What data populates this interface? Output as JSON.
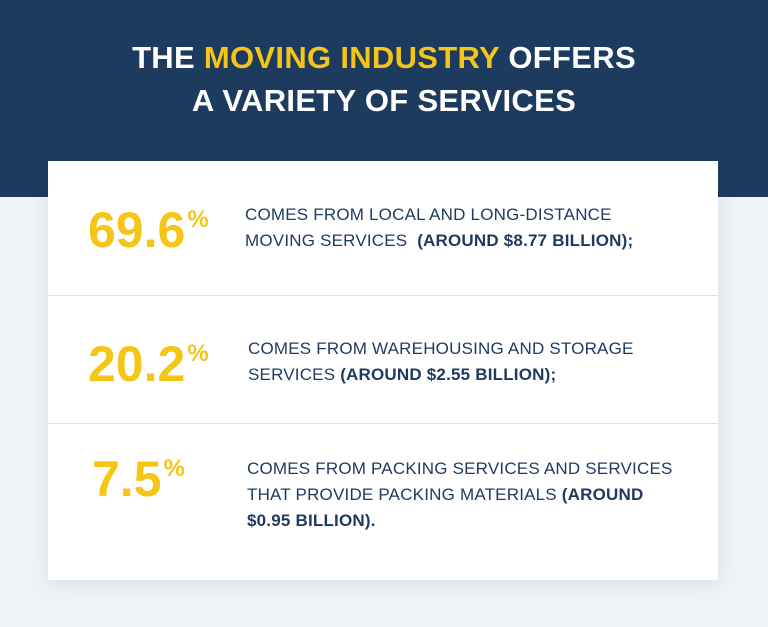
{
  "title": {
    "part1": "THE ",
    "highlight": "MOVING INDUSTRY",
    "part2": " OFFERS",
    "line2": "A VARIETY OF SERVICES"
  },
  "colors": {
    "navy": "#1d3a5f",
    "accent_yellow": "#f5c518",
    "background": "#eef3f6"
  },
  "chart_data": {
    "type": "table",
    "title": "THE MOVING INDUSTRY OFFERS A VARIETY OF SERVICES",
    "rows": [
      {
        "value": "69.6",
        "unit": "%",
        "text": "COMES FROM LOCAL AND LONG-DISTANCE MOVING SERVICES",
        "bold": "(AROUND $8.77 BILLION);"
      },
      {
        "value": "20.2",
        "unit": "%",
        "text": "COMES FROM WAREHOUSING AND STORAGE SERVICES",
        "bold": "(AROUND $2.55 BILLION);"
      },
      {
        "value": "7.5",
        "unit": "%",
        "text": "COMES FROM PACKING SERVICES AND SERVICES THAT PROVIDE PACKING MATERIALS",
        "bold": "(AROUND $0.95 BILLION)."
      }
    ]
  }
}
